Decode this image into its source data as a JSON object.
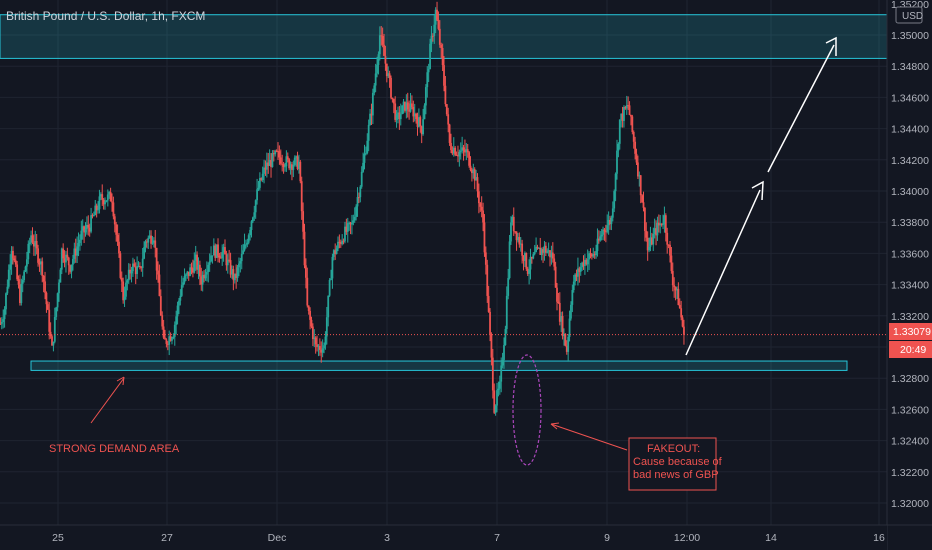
{
  "symbol_title": "British Pound / U.S. Dollar, 1h, FXCM",
  "currency_button": "USD",
  "price_tag": "1.33079",
  "countdown_tag": "20:49",
  "chart_data": {
    "type": "candlestick",
    "yticks": [
      1.32,
      1.322,
      1.324,
      1.326,
      1.328,
      1.33,
      1.332,
      1.334,
      1.336,
      1.338,
      1.34,
      1.342,
      1.344,
      1.346,
      1.348,
      1.35
    ],
    "ytick_labels": [
      "1.32000",
      "1.32200",
      "1.32400",
      "1.32600",
      "1.32800",
      "1.33000",
      "1.33200",
      "1.33400",
      "1.33600",
      "1.33800",
      "1.34000",
      "1.34200",
      "1.34400",
      "1.34600",
      "1.34800",
      "1.35000"
    ],
    "top_clipped_label": "1.35200",
    "ylim": [
      1.3188,
      1.3527
    ],
    "xlim": [
      24.5,
      16.5
    ],
    "x_ticks": [
      {
        "t": 0,
        "label": "25"
      },
      {
        "t": 1,
        "label": "27"
      },
      {
        "t": 2,
        "label": "Dec"
      },
      {
        "t": 3,
        "label": "3"
      },
      {
        "t": 4,
        "label": "7"
      },
      {
        "t": 5,
        "label": "9"
      },
      {
        "t": 6,
        "label": "12:00"
      },
      {
        "t": 7,
        "label": "14"
      },
      {
        "t": 8,
        "label": "16"
      }
    ],
    "current_price": 1.33079,
    "path_keypoints": [
      [
        0,
        1.3315
      ],
      [
        3,
        1.3325
      ],
      [
        8,
        1.3365
      ],
      [
        14,
        1.3332
      ],
      [
        22,
        1.3372
      ],
      [
        30,
        1.335
      ],
      [
        37,
        1.3298
      ],
      [
        44,
        1.3362
      ],
      [
        50,
        1.3352
      ],
      [
        58,
        1.3372
      ],
      [
        64,
        1.3378
      ],
      [
        72,
        1.3395
      ],
      [
        80,
        1.3396
      ],
      [
        88,
        1.3332
      ],
      [
        94,
        1.3352
      ],
      [
        100,
        1.3348
      ],
      [
        104,
        1.3368
      ],
      [
        110,
        1.3372
      ],
      [
        117,
        1.3302
      ],
      [
        124,
        1.331
      ],
      [
        130,
        1.334
      ],
      [
        140,
        1.3355
      ],
      [
        144,
        1.3343
      ],
      [
        152,
        1.3362
      ],
      [
        160,
        1.336
      ],
      [
        168,
        1.3343
      ],
      [
        176,
        1.3366
      ],
      [
        185,
        1.3402
      ],
      [
        190,
        1.3415
      ],
      [
        198,
        1.3423
      ],
      [
        206,
        1.3418
      ],
      [
        214,
        1.3418
      ],
      [
        220,
        1.3325
      ],
      [
        226,
        1.33
      ],
      [
        232,
        1.33
      ],
      [
        238,
        1.3358
      ],
      [
        246,
        1.3372
      ],
      [
        252,
        1.3378
      ],
      [
        258,
        1.3405
      ],
      [
        266,
        1.3452
      ],
      [
        272,
        1.35
      ],
      [
        278,
        1.3473
      ],
      [
        284,
        1.3445
      ],
      [
        290,
        1.3455
      ],
      [
        296,
        1.3451
      ],
      [
        302,
        1.344
      ],
      [
        308,
        1.349
      ],
      [
        312,
        1.3515
      ],
      [
        316,
        1.3488
      ],
      [
        322,
        1.343
      ],
      [
        328,
        1.3425
      ],
      [
        334,
        1.3425
      ],
      [
        340,
        1.341
      ],
      [
        346,
        1.338
      ],
      [
        350,
        1.332
      ],
      [
        354,
        1.3262
      ],
      [
        358,
        1.3274
      ],
      [
        362,
        1.3315
      ],
      [
        366,
        1.3382
      ],
      [
        372,
        1.3368
      ],
      [
        378,
        1.335
      ],
      [
        384,
        1.336
      ],
      [
        390,
        1.3363
      ],
      [
        396,
        1.3358
      ],
      [
        400,
        1.3325
      ],
      [
        406,
        1.3298
      ],
      [
        410,
        1.334
      ],
      [
        418,
        1.3355
      ],
      [
        426,
        1.336
      ],
      [
        432,
        1.3375
      ],
      [
        438,
        1.3382
      ],
      [
        444,
        1.3445
      ],
      [
        450,
        1.3455
      ],
      [
        456,
        1.342
      ],
      [
        460,
        1.3395
      ],
      [
        464,
        1.3362
      ],
      [
        470,
        1.3375
      ],
      [
        476,
        1.3383
      ],
      [
        482,
        1.3343
      ],
      [
        486,
        1.333
      ],
      [
        490,
        1.3308
      ]
    ],
    "zones": [
      {
        "name": "supply-zone",
        "y_low": 1.3485,
        "y_high": 1.3513,
        "t_start": -8,
        "t_end": 1000
      },
      {
        "name": "demand-zone",
        "y_low": 1.3285,
        "y_high": 1.3291,
        "t_start": 14,
        "t_end": 500
      }
    ],
    "annotations": [
      {
        "text": "STRONG DEMAND AREA",
        "t": 25,
        "y": 1.3242
      },
      {
        "lines": [
          "FAKEOUT:",
          "Cause because of",
          "bad news of GBP"
        ],
        "t": 320,
        "y": 1.3228
      },
      {
        "shape": "ellipse",
        "t": 355,
        "y": 1.3255
      },
      {
        "shape": "arrow",
        "from": [
          640,
          1.3292
        ],
        "to": [
          710,
          1.3485
        ]
      }
    ]
  }
}
